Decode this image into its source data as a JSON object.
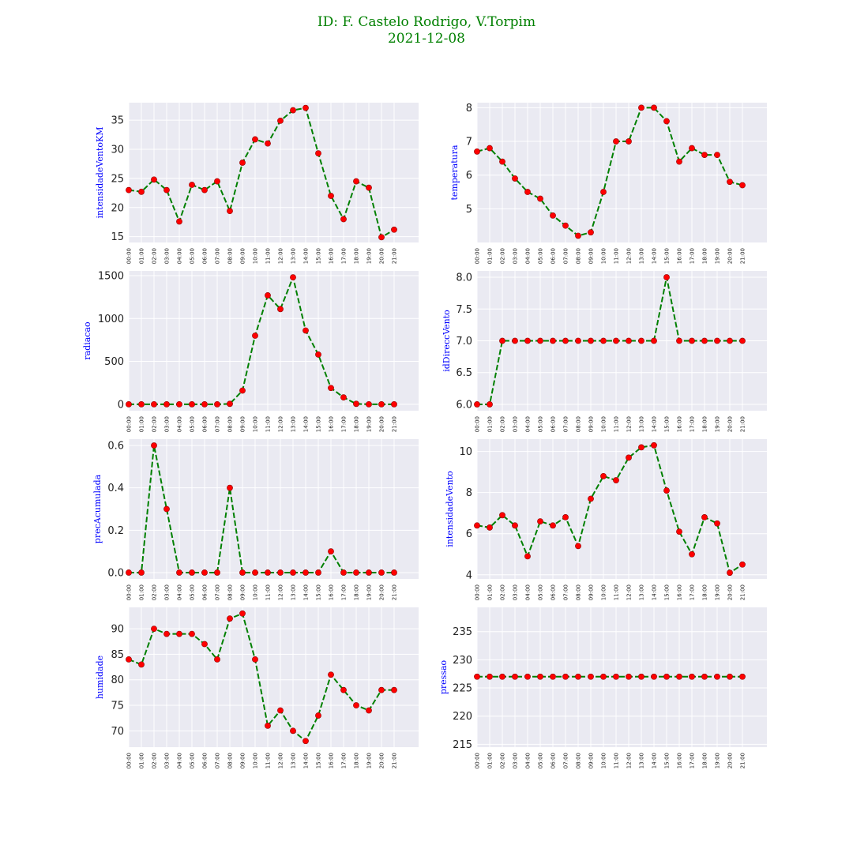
{
  "title": {
    "line1": "ID: F. Castelo Rodrigo, V.Torpim",
    "line2": "2021-12-08"
  },
  "colors": {
    "line": "#008000",
    "marker": "#ff0000",
    "marker_edge": "#8b0000",
    "axes_bg": "#eaeaf2",
    "grid": "#ffffff",
    "title": "#008000",
    "ylabel": "#0000ff"
  },
  "chart_data": [
    {
      "type": "line",
      "ylabel": "intensidadeVentoKM",
      "categories": [
        "00:00",
        "01:00",
        "02:00",
        "03:00",
        "04:00",
        "05:00",
        "06:00",
        "07:00",
        "08:00",
        "09:00",
        "10:00",
        "11:00",
        "12:00",
        "13:00",
        "14:00",
        "15:00",
        "16:00",
        "17:00",
        "18:00",
        "19:00",
        "20:00",
        "21:00"
      ],
      "values": [
        23,
        22.7,
        24.8,
        23,
        17.6,
        23.9,
        23,
        24.5,
        19.4,
        27.7,
        31.7,
        31,
        34.9,
        36.7,
        37.1,
        29.3,
        22,
        18,
        24.5,
        23.4,
        14.9,
        16.2
      ],
      "ylim": [
        14,
        38
      ],
      "yticks": [
        15,
        20,
        25,
        30,
        35
      ],
      "grid": true
    },
    {
      "type": "line",
      "ylabel": "temperatura",
      "categories": [
        "00:00",
        "01:00",
        "02:00",
        "03:00",
        "04:00",
        "05:00",
        "06:00",
        "07:00",
        "08:00",
        "09:00",
        "10:00",
        "11:00",
        "12:00",
        "13:00",
        "14:00",
        "15:00",
        "16:00",
        "17:00",
        "18:00",
        "19:00",
        "20:00",
        "21:00"
      ],
      "values": [
        6.7,
        6.8,
        6.4,
        5.9,
        5.5,
        5.3,
        4.8,
        4.5,
        4.2,
        4.3,
        5.5,
        7.0,
        7.0,
        8.0,
        8.0,
        7.6,
        6.4,
        6.8,
        6.6,
        6.6,
        5.8,
        5.7
      ],
      "ylim": [
        4.0,
        8.15
      ],
      "yticks": [
        5,
        6,
        7,
        8
      ],
      "grid": true
    },
    {
      "type": "line",
      "ylabel": "radiacao",
      "categories": [
        "00:00",
        "01:00",
        "02:00",
        "03:00",
        "04:00",
        "05:00",
        "06:00",
        "07:00",
        "08:00",
        "09:00",
        "10:00",
        "11:00",
        "12:00",
        "13:00",
        "14:00",
        "15:00",
        "16:00",
        "17:00",
        "18:00",
        "19:00",
        "20:00",
        "21:00"
      ],
      "values": [
        0,
        0,
        0,
        0,
        0,
        0,
        0,
        0,
        5,
        160,
        800,
        1270,
        1110,
        1480,
        860,
        580,
        190,
        80,
        5,
        0,
        0,
        0
      ],
      "ylim": [
        -75,
        1555
      ],
      "yticks": [
        0,
        500,
        1000,
        1500
      ],
      "grid": true
    },
    {
      "type": "line",
      "ylabel": "idDireccVento",
      "categories": [
        "00:00",
        "01:00",
        "02:00",
        "03:00",
        "04:00",
        "05:00",
        "06:00",
        "07:00",
        "08:00",
        "09:00",
        "10:00",
        "11:00",
        "12:00",
        "13:00",
        "14:00",
        "15:00",
        "16:00",
        "17:00",
        "18:00",
        "19:00",
        "20:00",
        "21:00"
      ],
      "values": [
        6,
        6,
        7,
        7,
        7,
        7,
        7,
        7,
        7,
        7,
        7,
        7,
        7,
        7,
        7,
        8,
        7,
        7,
        7,
        7,
        7,
        7
      ],
      "ylim": [
        5.9,
        8.1
      ],
      "yticks": [
        6.0,
        6.5,
        7.0,
        7.5,
        8.0
      ],
      "tick_decimals": 1,
      "grid": true
    },
    {
      "type": "line",
      "ylabel": "precAcumulada",
      "categories": [
        "00:00",
        "01:00",
        "02:00",
        "03:00",
        "04:00",
        "05:00",
        "06:00",
        "07:00",
        "08:00",
        "09:00",
        "10:00",
        "11:00",
        "12:00",
        "13:00",
        "14:00",
        "15:00",
        "16:00",
        "17:00",
        "18:00",
        "19:00",
        "20:00",
        "21:00"
      ],
      "values": [
        0,
        0,
        0.6,
        0.3,
        0,
        0,
        0,
        0,
        0.4,
        0,
        0,
        0,
        0,
        0,
        0,
        0,
        0.1,
        0,
        0,
        0,
        0,
        0
      ],
      "ylim": [
        -0.03,
        0.63
      ],
      "yticks": [
        0.0,
        0.2,
        0.4,
        0.6
      ],
      "tick_decimals": 1,
      "grid": true
    },
    {
      "type": "line",
      "ylabel": "intensidadeVento",
      "categories": [
        "00:00",
        "01:00",
        "02:00",
        "03:00",
        "04:00",
        "05:00",
        "06:00",
        "07:00",
        "08:00",
        "09:00",
        "10:00",
        "11:00",
        "12:00",
        "13:00",
        "14:00",
        "15:00",
        "16:00",
        "17:00",
        "18:00",
        "19:00",
        "20:00",
        "21:00"
      ],
      "values": [
        6.4,
        6.3,
        6.9,
        6.4,
        4.9,
        6.6,
        6.4,
        6.8,
        5.4,
        7.7,
        8.8,
        8.6,
        9.7,
        10.2,
        10.3,
        8.1,
        6.1,
        5.0,
        6.8,
        6.5,
        4.1,
        4.5
      ],
      "ylim": [
        3.8,
        10.6
      ],
      "yticks": [
        4,
        6,
        8,
        10
      ],
      "grid": true
    },
    {
      "type": "line",
      "ylabel": "humidade",
      "categories": [
        "00:00",
        "01:00",
        "02:00",
        "03:00",
        "04:00",
        "05:00",
        "06:00",
        "07:00",
        "08:00",
        "09:00",
        "10:00",
        "11:00",
        "12:00",
        "13:00",
        "14:00",
        "15:00",
        "16:00",
        "17:00",
        "18:00",
        "19:00",
        "20:00",
        "21:00"
      ],
      "values": [
        84,
        83,
        90,
        89,
        89,
        89,
        87,
        84,
        92,
        93,
        84,
        71,
        74,
        70,
        68,
        73,
        81,
        78,
        75,
        74,
        78,
        78
      ],
      "ylim": [
        66.8,
        94.2
      ],
      "yticks": [
        70,
        75,
        80,
        85,
        90
      ],
      "grid": true
    },
    {
      "type": "line",
      "ylabel": "pressao",
      "categories": [
        "00:00",
        "01:00",
        "02:00",
        "03:00",
        "04:00",
        "05:00",
        "06:00",
        "07:00",
        "08:00",
        "09:00",
        "10:00",
        "11:00",
        "12:00",
        "13:00",
        "14:00",
        "15:00",
        "16:00",
        "17:00",
        "18:00",
        "19:00",
        "20:00",
        "21:00"
      ],
      "values": [
        227,
        227,
        227,
        227,
        227,
        227,
        227,
        227,
        227,
        227,
        227,
        227,
        227,
        227,
        227,
        227,
        227,
        227,
        227,
        227,
        227,
        227
      ],
      "ylim": [
        214.5,
        239.3
      ],
      "yticks": [
        215,
        220,
        225,
        230,
        235
      ],
      "grid": true
    }
  ]
}
